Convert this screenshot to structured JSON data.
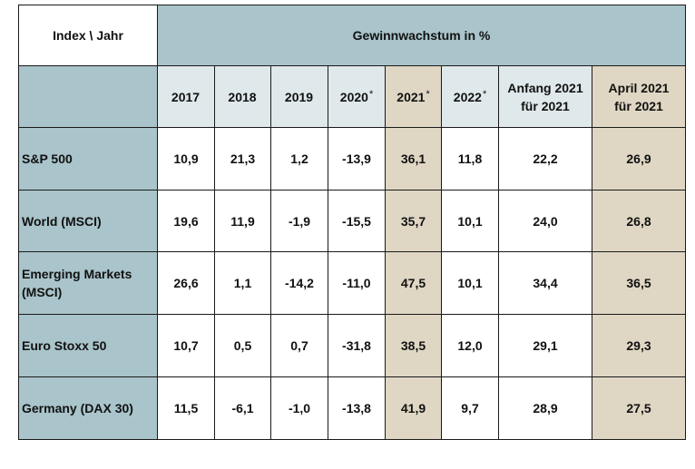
{
  "chart_data": {
    "type": "table",
    "corner_label": "Index \\ Jahr",
    "title": "Gewinnwachstum in %",
    "columns": [
      {
        "label": "2017",
        "mark": ""
      },
      {
        "label": "2018",
        "mark": ""
      },
      {
        "label": "2019",
        "mark": ""
      },
      {
        "label": "2020",
        "mark": "*"
      },
      {
        "label": "2021",
        "mark": "*"
      },
      {
        "label": "2022",
        "mark": "*"
      },
      {
        "label": "Anfang 2021",
        "label2": "für 2021",
        "mark": ""
      },
      {
        "label": "April 2021",
        "label2": "für 2021",
        "mark": ""
      }
    ],
    "highlight_columns": [
      4,
      7
    ],
    "rows": [
      {
        "label": "S&P 500",
        "values": [
          "10,9",
          "21,3",
          "1,2",
          "-13,9",
          "36,1",
          "11,8",
          "22,2",
          "26,9"
        ]
      },
      {
        "label": "World (MSCI)",
        "values": [
          "19,6",
          "11,9",
          "-1,9",
          "-15,5",
          "35,7",
          "10,1",
          "24,0",
          "26,8"
        ]
      },
      {
        "label": "Emerging Markets",
        "label2": "(MSCI)",
        "values": [
          "26,6",
          "1,1",
          "-14,2",
          "-11,0",
          "47,5",
          "10,1",
          "34,4",
          "36,5"
        ]
      },
      {
        "label": "Euro Stoxx 50",
        "values": [
          "10,7",
          "0,5",
          "0,7",
          "-31,8",
          "38,5",
          "12,0",
          "29,1",
          "29,3"
        ]
      },
      {
        "label": "Germany (DAX 30)",
        "values": [
          "11,5",
          "-6,1",
          "-1,0",
          "-13,8",
          "41,9",
          "9,7",
          "28,9",
          "27,5"
        ]
      }
    ],
    "colors": {
      "header_blue": "#a9c4ca",
      "year_header": "#dfe8ea",
      "highlight": "#dfd7c4"
    }
  }
}
